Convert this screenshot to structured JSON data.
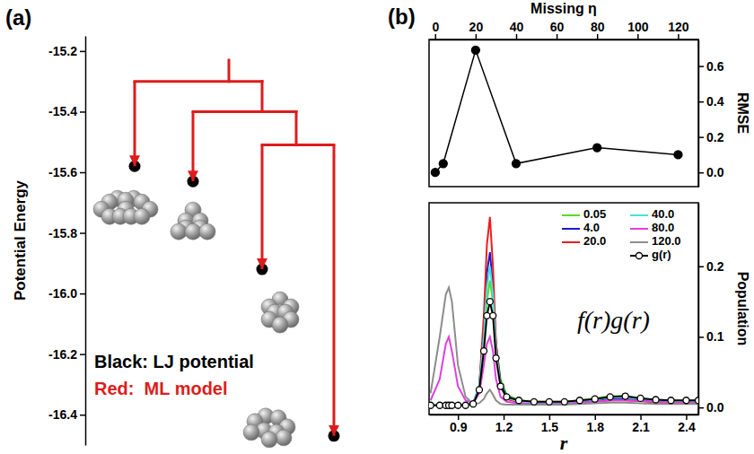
{
  "chart_data": [
    {
      "type": "tree",
      "title": "(a)",
      "ylabel": "Potential Energy",
      "ylim": [
        -16.5,
        -15.15
      ],
      "yticks": [
        -15.2,
        -15.4,
        -15.6,
        -15.8,
        {
          "value": -16,
          "label": "-16.0"
        },
        -16.2,
        -16.4
      ],
      "color": "#dd1c1c",
      "top": -15.23,
      "branch_energies": [
        -15.3,
        -15.4,
        -15.51
      ],
      "leaves": [
        {
          "lj": -15.58,
          "ml": -15.58
        },
        {
          "lj": -15.63,
          "ml": -15.63
        },
        {
          "lj": -15.92,
          "ml": -15.92
        },
        {
          "lj": -16.47,
          "ml": -16.47
        }
      ],
      "annotations": [
        {
          "text": "Black: LJ potential",
          "color": "#000000"
        },
        {
          "text": "Red:  ML model",
          "color": "#dd1c1c"
        }
      ]
    },
    {
      "type": "line",
      "title": "(b)",
      "xlabel": "Missing η",
      "ylabel": "RMSE",
      "xlim": [
        -3,
        130
      ],
      "ylim": [
        -0.08,
        0.75
      ],
      "xticks": [
        0,
        20,
        40,
        60,
        80,
        100,
        120
      ],
      "yticks": [
        {
          "value": 0,
          "label": "0.0"
        },
        0.2,
        0.4,
        0.6
      ],
      "x": [
        0.05,
        4,
        20,
        40,
        80,
        120
      ],
      "values": [
        0,
        0.05,
        0.69,
        0.05,
        0.14,
        0.1
      ],
      "color": "#000000",
      "marker": "circle",
      "line_style": "solid"
    },
    {
      "type": "line",
      "xlabel": "r",
      "ylabel": "Population",
      "xlim": [
        0.71,
        2.48
      ],
      "ylim": [
        -0.01,
        0.29
      ],
      "xticks": [
        0.9,
        1.2,
        1.5,
        1.8,
        2.1,
        2.4
      ],
      "yticks": [
        {
          "value": 0,
          "label": "0.0"
        },
        0.1,
        0.2
      ],
      "legend": "upper right",
      "annotations": [
        {
          "text": "f(r)g(r)"
        }
      ],
      "x": [
        0.72,
        0.78,
        0.82,
        0.84,
        0.86,
        0.9,
        0.95,
        1.0,
        1.04,
        1.07,
        1.09,
        1.11,
        1.13,
        1.15,
        1.18,
        1.22,
        1.3,
        1.4,
        1.5,
        1.6,
        1.7,
        1.8,
        1.9,
        2.0,
        2.1,
        2.2,
        2.3,
        2.4,
        2.48
      ],
      "series": [
        {
          "name": "0.05",
          "color": "#55dd22",
          "line_style": "solid",
          "values": [
            0.004,
            0.004,
            0.004,
            0.004,
            0.004,
            0.004,
            0.004,
            0.006,
            0.03,
            0.09,
            0.15,
            0.18,
            0.15,
            0.09,
            0.04,
            0.018,
            0.01,
            0.008,
            0.008,
            0.008,
            0.01,
            0.013,
            0.016,
            0.016,
            0.013,
            0.011,
            0.01,
            0.01,
            0.01
          ]
        },
        {
          "name": "4.0",
          "color": "#1a1acc",
          "line_style": "solid",
          "values": [
            0.004,
            0.004,
            0.004,
            0.004,
            0.004,
            0.004,
            0.004,
            0.006,
            0.03,
            0.11,
            0.19,
            0.22,
            0.17,
            0.09,
            0.035,
            0.015,
            0.008,
            0.006,
            0.006,
            0.006,
            0.008,
            0.01,
            0.013,
            0.013,
            0.011,
            0.009,
            0.008,
            0.008,
            0.008
          ]
        },
        {
          "name": "20.0",
          "color": "#ee1c1c",
          "line_style": "solid",
          "values": [
            0.003,
            0.003,
            0.003,
            0.003,
            0.003,
            0.003,
            0.003,
            0.005,
            0.03,
            0.13,
            0.23,
            0.27,
            0.2,
            0.09,
            0.03,
            0.012,
            0.007,
            0.005,
            0.005,
            0.005,
            0.006,
            0.008,
            0.01,
            0.01,
            0.009,
            0.007,
            0.006,
            0.006,
            0.006
          ]
        },
        {
          "name": "40.0",
          "color": "#44e0e0",
          "line_style": "solid",
          "values": [
            0.004,
            0.004,
            0.005,
            0.005,
            0.005,
            0.004,
            0.004,
            0.006,
            0.03,
            0.1,
            0.17,
            0.2,
            0.16,
            0.08,
            0.03,
            0.014,
            0.008,
            0.007,
            0.007,
            0.007,
            0.009,
            0.011,
            0.014,
            0.014,
            0.012,
            0.01,
            0.009,
            0.009,
            0.009
          ]
        },
        {
          "name": "80.0",
          "color": "#e040e0",
          "line_style": "solid",
          "values": [
            0.01,
            0.04,
            0.09,
            0.1,
            0.08,
            0.03,
            0.01,
            0.006,
            0.02,
            0.06,
            0.09,
            0.1,
            0.08,
            0.04,
            0.015,
            0.008,
            0.006,
            0.005,
            0.005,
            0.005,
            0.007,
            0.008,
            0.01,
            0.01,
            0.009,
            0.008,
            0.007,
            0.007,
            0.007
          ]
        },
        {
          "name": "120.0",
          "color": "#8c8c8c",
          "line_style": "solid",
          "values": [
            0.02,
            0.1,
            0.16,
            0.17,
            0.15,
            0.06,
            0.015,
            0.005,
            0.006,
            0.012,
            0.02,
            0.025,
            0.018,
            0.01,
            0.005,
            0.004,
            0.004,
            0.004,
            0.004,
            0.004,
            0.005,
            0.006,
            0.007,
            0.007,
            0.006,
            0.005,
            0.005,
            0.005,
            0.005
          ]
        },
        {
          "name": "g(r)",
          "color": "#000000",
          "line_style": "solid",
          "marker": "open_circle",
          "values": [
            0.003,
            0.003,
            0.003,
            0.003,
            0.003,
            0.003,
            0.003,
            0.005,
            0.025,
            0.08,
            0.13,
            0.15,
            0.13,
            0.07,
            0.03,
            0.015,
            0.01,
            0.008,
            0.008,
            0.008,
            0.01,
            0.012,
            0.015,
            0.016,
            0.013,
            0.011,
            0.01,
            0.01,
            0.01
          ]
        }
      ]
    }
  ]
}
